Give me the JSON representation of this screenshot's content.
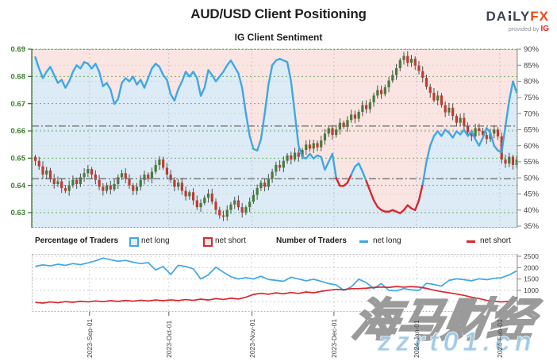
{
  "header": {
    "title": "AUD/USD Client Positioning"
  },
  "logo": {
    "da": "DA",
    "ly": "LY",
    "fx": "FX",
    "provided": "provided by",
    "ig": "IG"
  },
  "legend": {
    "percentage_label": "Percentage of Traders",
    "pct_net_long": "net long",
    "pct_net_short": "net short",
    "number_label": "Number of Traders",
    "num_net_long": "net long",
    "num_net_short": "net short"
  },
  "watermark": {
    "line1": "海马财经",
    "line2": "zzrt01.cn"
  },
  "colors": {
    "accent_blue": "#3fa7e5",
    "accent_red": "#d7282f",
    "candle_up": "#457c39",
    "candle_down": "#c4392f",
    "wick": "#4f4f4f",
    "bg_above_line": "#fbe5e2",
    "bg_below_line": "#dcebf6",
    "grid_green": "#5aa048",
    "grid_pale": "#c9e0c2",
    "grid_vert": "#b9c7d7",
    "grid_gray": "#cfcfcf",
    "axis_green": "#3c7a2e",
    "axis_gray": "#3f3f3f",
    "ref_line": "#6a6a6a",
    "logo_orange": "#f4490f",
    "ig_red": "#e8251f",
    "watermark_blue": "#9ec9e4"
  },
  "chart_data": [
    {
      "type": "candlestick+line",
      "title": "IG Client Sentiment",
      "price_axis": {
        "side": "left",
        "ticks": [
          "0.69",
          "0.68",
          "0.67",
          "0.66",
          "0.65",
          "0.64",
          "0.63"
        ],
        "range": [
          0.624,
          0.69
        ]
      },
      "sentiment_axis": {
        "side": "right",
        "ticks": [
          "90%",
          "85%",
          "80%",
          "75%",
          "70%",
          "65%",
          "60%",
          "55%",
          "50%",
          "45%",
          "40%",
          "35%"
        ],
        "range": [
          35,
          90
        ]
      },
      "months": [
        {
          "label": "2023-Sep-01",
          "i": 14.4
        },
        {
          "label": "2023-Oct-01",
          "i": 35.5
        },
        {
          "label": "2023-Nov-01",
          "i": 57.6
        },
        {
          "label": "2023-Dec-01",
          "i": 79.4
        },
        {
          "label": "2024-Jan-01",
          "i": 101.3
        },
        {
          "label": "2024-Feb-01",
          "i": 123.5
        }
      ],
      "reference_lines_pct": [
        66.1,
        49.7
      ],
      "candle_start_price": 0.6505,
      "candles_close": [
        0.649,
        0.647,
        0.644,
        0.6455,
        0.6425,
        0.6405,
        0.6415,
        0.639,
        0.638,
        0.64,
        0.642,
        0.6405,
        0.643,
        0.6445,
        0.646,
        0.644,
        0.642,
        0.6395,
        0.638,
        0.64,
        0.6385,
        0.6405,
        0.643,
        0.6445,
        0.6425,
        0.64,
        0.638,
        0.6395,
        0.642,
        0.644,
        0.6425,
        0.645,
        0.6475,
        0.6495,
        0.6465,
        0.644,
        0.642,
        0.6395,
        0.641,
        0.638,
        0.636,
        0.6375,
        0.6345,
        0.632,
        0.6335,
        0.6355,
        0.637,
        0.634,
        0.631,
        0.629,
        0.6285,
        0.631,
        0.633,
        0.6345,
        0.632,
        0.63,
        0.632,
        0.634,
        0.6365,
        0.639,
        0.641,
        0.6395,
        0.6425,
        0.645,
        0.6475,
        0.6465,
        0.649,
        0.651,
        0.6495,
        0.652,
        0.6505,
        0.653,
        0.655,
        0.6535,
        0.6555,
        0.654,
        0.6565,
        0.659,
        0.661,
        0.6585,
        0.6605,
        0.663,
        0.6615,
        0.664,
        0.666,
        0.6645,
        0.667,
        0.6695,
        0.668,
        0.6705,
        0.673,
        0.675,
        0.6735,
        0.676,
        0.6785,
        0.6805,
        0.683,
        0.686,
        0.6875,
        0.685,
        0.6865,
        0.684,
        0.682,
        0.6795,
        0.6762,
        0.674,
        0.6712,
        0.673,
        0.6695,
        0.6668,
        0.6685,
        0.6655,
        0.663,
        0.6648,
        0.6618,
        0.6595,
        0.658,
        0.661,
        0.66,
        0.6585,
        0.657,
        0.659,
        0.6605,
        0.658,
        0.6495,
        0.648,
        0.6505,
        0.6475,
        0.6495
      ],
      "sentiment_net_long_pct": [
        87.5,
        84,
        81,
        83,
        84.5,
        82,
        79.5,
        80.5,
        78,
        80,
        83,
        85,
        84,
        86,
        85.5,
        84,
        85.5,
        83,
        78.5,
        79.5,
        77.5,
        73,
        74.5,
        79.5,
        81,
        80,
        81.5,
        79,
        80.5,
        78,
        81,
        84,
        85.5,
        84.5,
        82,
        80.5,
        76,
        74,
        77.5,
        80,
        83,
        81.5,
        83,
        81,
        75.5,
        78,
        83.5,
        82,
        80,
        81.5,
        83,
        85,
        86.5,
        84.5,
        82.5,
        78,
        70,
        63,
        59,
        58.5,
        62,
        70,
        79,
        85,
        86.5,
        87,
        86.5,
        86,
        80,
        70,
        60,
        56.5,
        56,
        57.5,
        56,
        57,
        56.5,
        52.5,
        55,
        57.5,
        50,
        47.5,
        47.5,
        48.5,
        51,
        53.5,
        54.5,
        52,
        49,
        46,
        43,
        41,
        40,
        39.5,
        39.5,
        40,
        39.5,
        39,
        40,
        41.5,
        40.5,
        40,
        43,
        48,
        55,
        60,
        63,
        64.5,
        63,
        65,
        64,
        62.5,
        64.5,
        63.5,
        65,
        63,
        64.5,
        62,
        60,
        62.5,
        65.5,
        64,
        60,
        58.5,
        58,
        66,
        74,
        80,
        76.5
      ]
    },
    {
      "type": "line",
      "y_axis": {
        "side": "right",
        "ticks": [
          "2500",
          "2000",
          "1500",
          "1000",
          "500"
        ],
        "range": [
          0,
          2500
        ]
      },
      "x_step_candles": 2,
      "series": [
        {
          "name": "net long",
          "color": "#3fa7e5",
          "values": [
            2060,
            2120,
            2080,
            2150,
            2100,
            2180,
            2130,
            2210,
            2300,
            2420,
            2350,
            2280,
            2320,
            2240,
            2180,
            2220,
            1900,
            2050,
            1700,
            2100,
            2050,
            1950,
            1500,
            1680,
            2020,
            1800,
            1600,
            1500,
            1560,
            1500,
            1620,
            1480,
            1440,
            1400,
            1580,
            1500,
            1420,
            1490,
            1400,
            1300,
            1240,
            1000,
            1150,
            1490,
            1340,
            1080,
            1300,
            1000,
            980,
            1080,
            1020,
            1000,
            1310,
            1260,
            1190,
            1440,
            1510,
            1470,
            1420,
            1510,
            1470,
            1530,
            1560,
            1680,
            1860
          ]
        },
        {
          "name": "net short",
          "color": "#d7282f",
          "values": [
            470,
            440,
            490,
            455,
            505,
            475,
            520,
            495,
            535,
            505,
            545,
            515,
            555,
            525,
            565,
            535,
            575,
            545,
            580,
            550,
            595,
            560,
            615,
            575,
            640,
            600,
            655,
            620,
            700,
            820,
            870,
            830,
            890,
            850,
            905,
            865,
            930,
            895,
            955,
            1005,
            1045,
            1030,
            1075,
            1080,
            1095,
            1130,
            1145,
            1130,
            1170,
            1140,
            1165,
            1140,
            1090,
            1010,
            945,
            895,
            840,
            780,
            700,
            640,
            560,
            520,
            490,
            520,
            700
          ]
        }
      ]
    }
  ]
}
